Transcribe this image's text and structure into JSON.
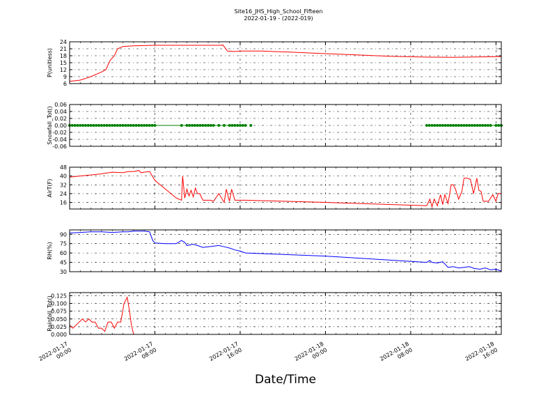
{
  "title_line1": "Site16_JHS_High_School_Fifteen",
  "title_line2": "2022-01-19 - (2022-019)",
  "xlabel": "Date/Time",
  "x_ticks": [
    {
      "t": 0,
      "line1": "2022-01-17",
      "line2": "00:00"
    },
    {
      "t": 8,
      "line1": "2022-01-17",
      "line2": "08:00"
    },
    {
      "t": 16,
      "line1": "2022-01-17",
      "line2": "16:00"
    },
    {
      "t": 24,
      "line1": "2022-01-18",
      "line2": "00:00"
    },
    {
      "t": 32,
      "line1": "2022-01-18",
      "line2": "08:00"
    },
    {
      "t": 40,
      "line1": "2022-01-18",
      "line2": "16:00"
    }
  ],
  "chart_data": [
    {
      "type": "line",
      "ylabel": "P(unitless)",
      "color": "#ff0000",
      "ylim": [
        6,
        24
      ],
      "yticks": [
        "6",
        "9",
        "12",
        "15",
        "18",
        "21",
        "24"
      ],
      "yvals": [
        6,
        9,
        12,
        15,
        18,
        21,
        24
      ],
      "series": [
        {
          "x": [
            0,
            1,
            2,
            3,
            3.4,
            3.8,
            4.2,
            4.5,
            5,
            6,
            8,
            10,
            12,
            14,
            14.4,
            14.8,
            15.5,
            16,
            18,
            21,
            24,
            30,
            33.5,
            36,
            40.5
          ],
          "y": [
            7,
            7.5,
            9,
            11,
            12,
            16,
            18,
            21,
            22,
            22.3,
            22.5,
            22.5,
            22.5,
            22.5,
            22.6,
            20,
            19.8,
            20,
            20,
            19.5,
            18.9,
            17.8,
            17.4,
            17.3,
            17.6
          ]
        }
      ]
    },
    {
      "type": "scatter",
      "ylabel": "Snowfall_Tot()",
      "color": "#008000",
      "ylim": [
        -0.06,
        0.06
      ],
      "yticks": [
        "-0.06",
        "-0.04",
        "-0.02",
        "0.00",
        "0.02",
        "0.04",
        "0.06"
      ],
      "yvals": [
        -0.06,
        -0.04,
        -0.02,
        0,
        0.02,
        0.04,
        0.06
      ],
      "zero_line_segments": [
        [
          0,
          16.5
        ],
        [
          33.5,
          40.5
        ]
      ],
      "series": [
        {
          "x": [
            0,
            0.25,
            0.5,
            0.75,
            1,
            1.25,
            1.5,
            1.75,
            2,
            2.25,
            2.5,
            2.75,
            3,
            3.25,
            3.5,
            3.75,
            4,
            4.25,
            4.5,
            4.75,
            5,
            5.25,
            5.5,
            5.75,
            6,
            6.25,
            6.5,
            6.75,
            7,
            7.25,
            7.5,
            7.75,
            8,
            10.5,
            11,
            11.25,
            11.5,
            11.75,
            12,
            12.25,
            12.5,
            12.75,
            13,
            13.25,
            13.5,
            14,
            14.5,
            15,
            15.25,
            15.5,
            15.75,
            16,
            16.25,
            16.5,
            17,
            33.5,
            33.75,
            34,
            34.25,
            34.5,
            34.75,
            35,
            35.25,
            35.5,
            35.75,
            36,
            36.25,
            36.5,
            36.75,
            37,
            37.25,
            37.5,
            37.75,
            38,
            38.25,
            38.5,
            38.75,
            39,
            39.25,
            39.5,
            40,
            40.25,
            40.5
          ],
          "y": "all_zero"
        }
      ]
    },
    {
      "type": "line",
      "ylabel": "AirT(F)",
      "color": "#ff0000",
      "ylim": [
        10,
        48
      ],
      "yticks": [
        "16",
        "24",
        "32",
        "40",
        "48"
      ],
      "yvals": [
        16,
        24,
        32,
        40,
        48
      ],
      "series": [
        {
          "x": [
            0,
            1,
            2,
            3,
            4,
            5,
            5.5,
            6,
            6.5,
            6.7,
            7,
            7.5,
            8,
            9,
            10,
            10.5,
            10.6,
            10.8,
            11,
            11.2,
            11.4,
            11.6,
            11.8,
            12,
            12.2,
            12.5,
            12.8,
            13,
            13.2,
            13.5,
            14,
            14.5,
            14.7,
            15,
            15.2,
            15.5,
            15.7,
            16,
            16.5,
            24,
            33.5,
            33.8,
            34,
            34.2,
            34.5,
            34.8,
            35,
            35.2,
            35.5,
            35.8,
            36,
            36.2,
            36.5,
            36.8,
            37,
            37.3,
            37.6,
            37.9,
            38.2,
            38.4,
            38.6,
            38.8,
            39,
            39.3,
            39.7,
            40,
            40.2,
            40.5
          ],
          "y": [
            39,
            40,
            41,
            42,
            43.5,
            43,
            44,
            44,
            45,
            43,
            43.5,
            44,
            36,
            28,
            20,
            18,
            40,
            20,
            28,
            22,
            27,
            21,
            29,
            24,
            24,
            18,
            18,
            18,
            18,
            17,
            24,
            16,
            28,
            17,
            28,
            18,
            18,
            18,
            18,
            16,
            13,
            19,
            12,
            19,
            13,
            23,
            14,
            23,
            15,
            32,
            32,
            28,
            19,
            26,
            38,
            38,
            37,
            24,
            38,
            27,
            26,
            17,
            17,
            17,
            23,
            17,
            24,
            24
          ]
        }
      ]
    },
    {
      "type": "line",
      "ylabel": "RH(%)",
      "color": "#0000ff",
      "ylim": [
        30,
        97
      ],
      "yticks": [
        "30",
        "45",
        "60",
        "75",
        "90"
      ],
      "yvals": [
        30,
        45,
        60,
        75,
        90
      ],
      "series": [
        {
          "x": [
            0,
            1,
            2,
            3,
            4,
            5,
            5.5,
            6,
            6.5,
            7,
            7.5,
            7.8,
            8,
            9,
            10,
            10.5,
            10.8,
            11,
            11.3,
            11.6,
            12,
            12.5,
            13,
            14,
            14.5,
            15,
            15.5,
            16,
            16.5,
            24,
            33.5,
            33.8,
            34,
            34.5,
            35,
            35.5,
            36,
            36.5,
            37,
            37.5,
            38,
            38.5,
            39,
            39.5,
            40,
            40.5
          ],
          "y": [
            92,
            93,
            94,
            94,
            93,
            94,
            94,
            95,
            95,
            95,
            94,
            80,
            76,
            75,
            75,
            80,
            77,
            72,
            73,
            74,
            72,
            69,
            70,
            72,
            70,
            68,
            65,
            63,
            60,
            55,
            45,
            48,
            45,
            44,
            46,
            37,
            38,
            36,
            37,
            38,
            35,
            34,
            36,
            33,
            34,
            31
          ]
        }
      ]
    },
    {
      "type": "line",
      "ylabel": "Rainfall_Tot()",
      "color": "#ff0000",
      "ylim": [
        0,
        0.135
      ],
      "yticks": [
        "0.000",
        "0.025",
        "0.050",
        "0.075",
        "0.100",
        "0.125"
      ],
      "yvals": [
        0,
        0.025,
        0.05,
        0.075,
        0.1,
        0.125
      ],
      "series": [
        {
          "x": [
            0,
            0.3,
            0.6,
            0.9,
            1.2,
            1.5,
            1.8,
            2.1,
            2.4,
            2.7,
            3,
            3.3,
            3.6,
            3.9,
            4.2,
            4.5,
            4.8,
            5.1,
            5.4,
            5.6,
            5.8,
            6,
            6.2,
            6.5,
            7,
            8,
            16,
            24,
            32,
            40.5
          ],
          "y": [
            0.03,
            0.02,
            0.03,
            0.04,
            0.05,
            0.04,
            0.05,
            0.04,
            0.04,
            0.02,
            0.02,
            0.01,
            0.04,
            0.04,
            0.02,
            0.04,
            0.04,
            0.1,
            0.12,
            0.08,
            0.03,
            0,
            0,
            0,
            0,
            0,
            0,
            0,
            0,
            0
          ]
        }
      ]
    }
  ]
}
